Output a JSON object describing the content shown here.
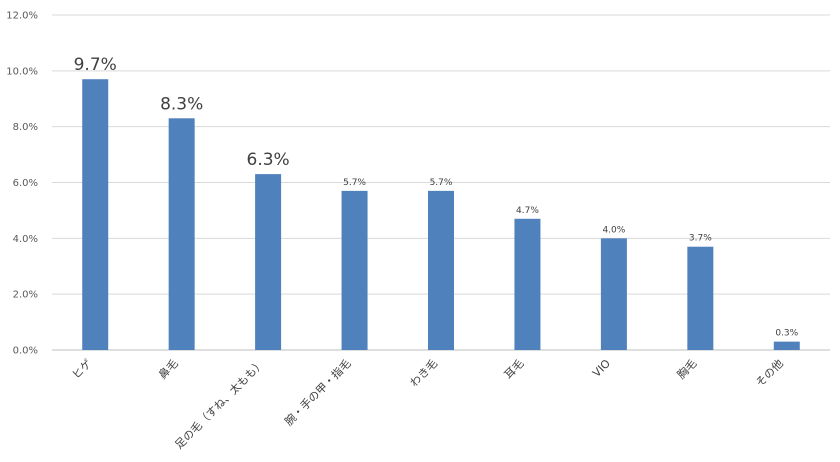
{
  "chart_data": {
    "type": "bar",
    "categories": [
      "ヒゲ",
      "鼻毛",
      "足の毛（すね、太もも）",
      "腕・手の甲・指毛",
      "わき毛",
      "耳毛",
      "VIO",
      "胸毛",
      "その他"
    ],
    "values": [
      9.7,
      8.3,
      6.3,
      5.7,
      5.7,
      4.7,
      4.0,
      3.7,
      0.3
    ],
    "data_labels": [
      "9.7%",
      "8.3%",
      "6.3%",
      "5.7%",
      "5.7%",
      "4.7%",
      "4.0%",
      "3.7%",
      "0.3%"
    ],
    "emphasized_labels": [
      true,
      true,
      true,
      false,
      false,
      false,
      false,
      false,
      false
    ],
    "y_ticks": [
      0,
      2,
      4,
      6,
      8,
      10,
      12
    ],
    "y_tick_labels": [
      "0.0%",
      "2.0%",
      "4.0%",
      "6.0%",
      "8.0%",
      "10.0%",
      "12.0%"
    ],
    "ylim": [
      0,
      12
    ],
    "grid": true,
    "legend": "none",
    "title": "",
    "xlabel": "",
    "ylabel": "",
    "bar_color": "#4f81bd"
  }
}
